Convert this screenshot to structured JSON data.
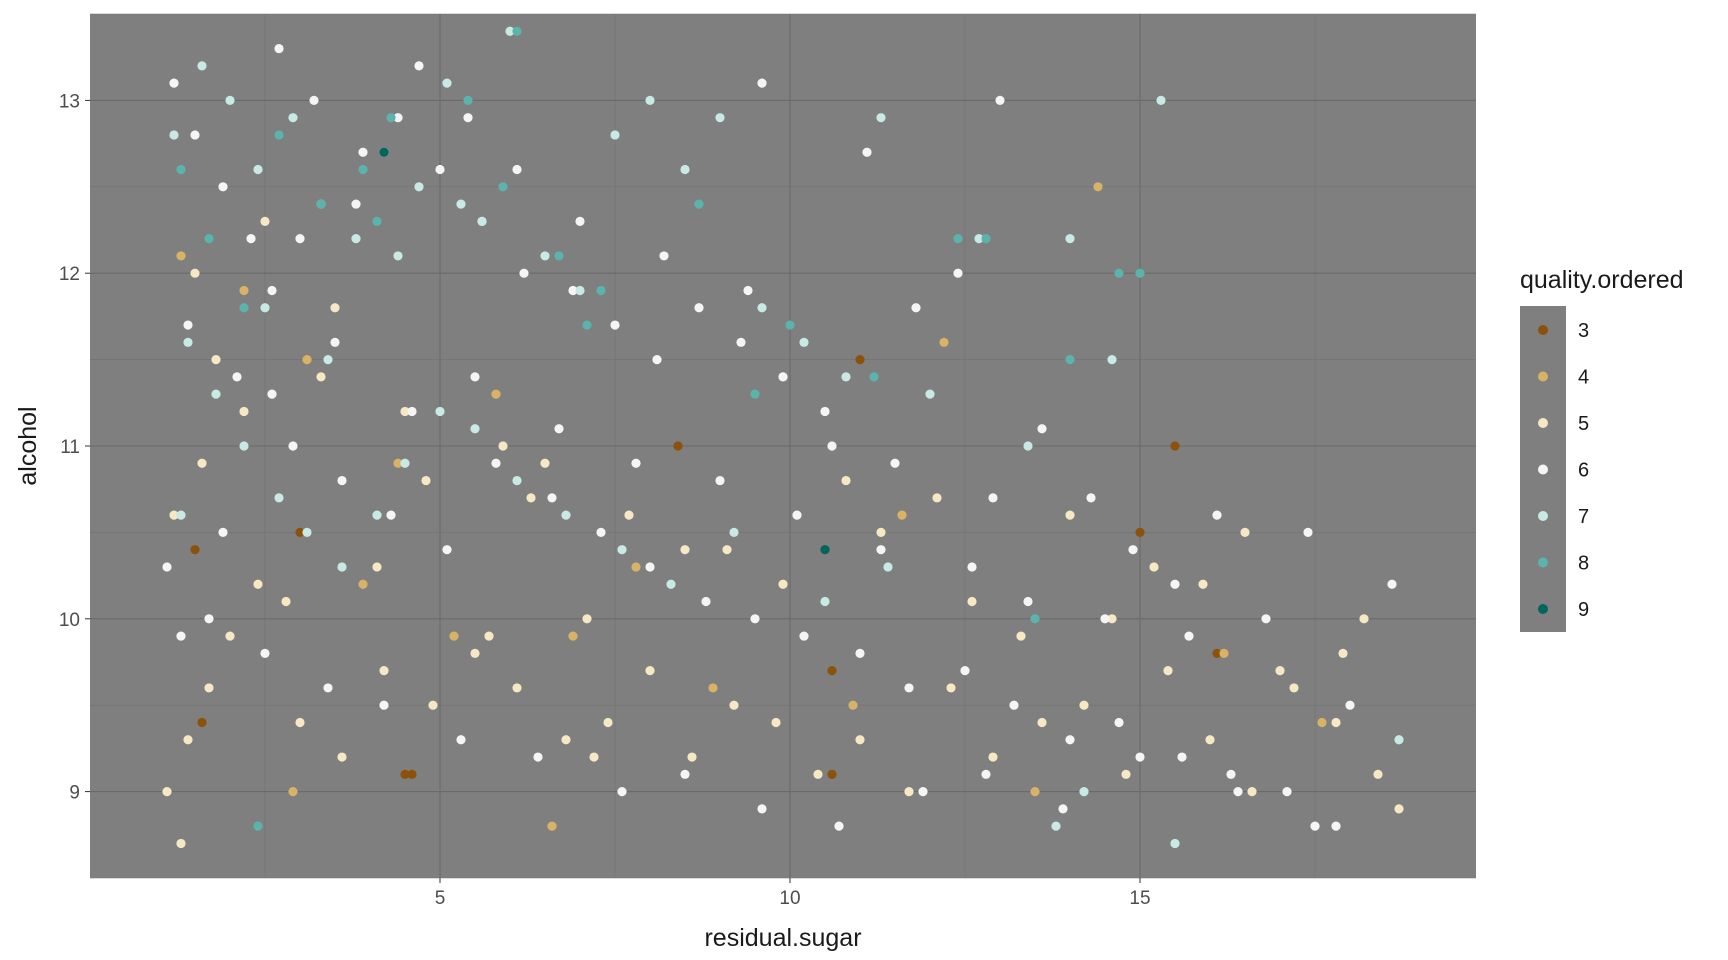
{
  "chart_data": {
    "type": "scatter",
    "xlabel": "residual.sugar",
    "ylabel": "alcohol",
    "xlim": [
      0.0,
      19.8
    ],
    "ylim": [
      8.5,
      13.5
    ],
    "xticks": [
      5,
      10,
      15
    ],
    "yticks": [
      9,
      10,
      11,
      12,
      13
    ],
    "xtick_labels": [
      "5",
      "10",
      "15"
    ],
    "ytick_labels": [
      "9",
      "10",
      "11",
      "12",
      "13"
    ],
    "grid": true,
    "panel_background": "#7f7f7f",
    "legend": {
      "title": "quality.ordered",
      "position": "right",
      "entries": [
        "3",
        "4",
        "5",
        "6",
        "7",
        "8",
        "9"
      ],
      "colors": [
        "#8c510a",
        "#d8b365",
        "#f6e8c3",
        "#f5f5f5",
        "#c7eae5",
        "#5ab4ac",
        "#01665e"
      ]
    },
    "series": [
      {
        "name": "3",
        "color": "#8c510a",
        "x": [
          1.5,
          3.0,
          4.5,
          8.4,
          10.5,
          10.6,
          10.6,
          11.0,
          15.0,
          15.5,
          16.1,
          1.6,
          4.6
        ],
        "y": [
          10.4,
          10.5,
          9.1,
          11.0,
          10.4,
          9.7,
          9.1,
          11.5,
          10.5,
          11.0,
          9.8,
          9.4,
          9.1
        ]
      },
      {
        "name": "4",
        "color": "#d8b365",
        "x": [
          1.3,
          2.2,
          3.1,
          3.9,
          5.2,
          6.6,
          7.8,
          8.9,
          9.9,
          10.9,
          12.2,
          13.5,
          14.4,
          16.2,
          17.6,
          5.8,
          6.9,
          11.6,
          2.9,
          4.4
        ],
        "y": [
          12.1,
          11.9,
          11.5,
          10.2,
          9.9,
          8.8,
          10.3,
          9.6,
          11.4,
          9.5,
          11.6,
          9.0,
          12.5,
          9.8,
          9.4,
          11.3,
          9.9,
          10.6,
          9.0,
          10.9
        ]
      },
      {
        "name": "5",
        "color": "#f6e8c3",
        "x": [
          1.1,
          1.4,
          1.7,
          2.0,
          2.4,
          1.2,
          1.6,
          2.2,
          3.0,
          3.6,
          4.2,
          4.9,
          5.5,
          6.1,
          6.8,
          7.4,
          8.0,
          8.6,
          9.2,
          9.8,
          10.4,
          11.0,
          11.7,
          12.3,
          12.9,
          13.6,
          14.2,
          14.8,
          15.4,
          16.0,
          16.6,
          17.2,
          17.8,
          18.4,
          18.7,
          1.3,
          2.8,
          4.1,
          5.7,
          7.1,
          8.5,
          9.9,
          11.3,
          12.6,
          14.0,
          15.2,
          16.5,
          17.9,
          1.8,
          3.3,
          4.8,
          6.3,
          7.7,
          9.1,
          10.8,
          12.1,
          13.3,
          14.6,
          15.9,
          17.0,
          18.2,
          1.5,
          2.5,
          3.5,
          4.5,
          5.9,
          6.5,
          7.2
        ],
        "y": [
          9.0,
          9.3,
          9.6,
          9.9,
          10.2,
          10.6,
          10.9,
          11.2,
          9.4,
          9.2,
          9.7,
          9.5,
          9.8,
          9.6,
          9.3,
          9.4,
          9.7,
          9.2,
          9.5,
          9.4,
          9.1,
          9.3,
          9.0,
          9.6,
          9.2,
          9.4,
          9.5,
          9.1,
          9.7,
          9.3,
          9.0,
          9.6,
          9.4,
          9.1,
          8.9,
          8.7,
          10.1,
          10.3,
          9.9,
          10.0,
          10.4,
          10.2,
          10.5,
          10.1,
          10.6,
          10.3,
          10.5,
          9.8,
          11.5,
          11.4,
          10.8,
          10.7,
          10.6,
          10.4,
          10.8,
          10.7,
          9.9,
          10.0,
          10.2,
          9.7,
          10.0,
          12.0,
          12.3,
          11.8,
          11.2,
          11.0,
          10.9,
          9.2
        ]
      },
      {
        "name": "6",
        "color": "#f5f5f5",
        "x": [
          1.2,
          1.5,
          1.9,
          2.3,
          2.7,
          3.2,
          3.8,
          4.4,
          5.0,
          5.6,
          6.2,
          6.9,
          7.5,
          8.1,
          8.7,
          9.3,
          9.9,
          10.5,
          11.1,
          11.8,
          12.4,
          13.0,
          13.6,
          14.3,
          14.9,
          15.5,
          16.1,
          16.8,
          17.4,
          18.0,
          18.6,
          1.4,
          2.1,
          2.9,
          3.6,
          4.3,
          5.1,
          5.8,
          6.6,
          7.3,
          8.0,
          8.8,
          9.5,
          10.2,
          11.0,
          11.7,
          12.5,
          13.2,
          14.0,
          14.7,
          15.6,
          16.3,
          17.1,
          17.8,
          1.1,
          1.7,
          2.5,
          3.4,
          4.2,
          5.3,
          6.4,
          7.6,
          8.5,
          9.6,
          10.7,
          11.9,
          12.8,
          13.9,
          15.0,
          16.4,
          17.5,
          2.6,
          3.5,
          4.6,
          5.5,
          6.7,
          7.8,
          9.0,
          10.1,
          11.3,
          12.6,
          13.4,
          14.5,
          15.7,
          1.3,
          1.9,
          2.6,
          3.0,
          3.9,
          4.7,
          5.4,
          6.1,
          7.0,
          8.2,
          9.4,
          10.6,
          11.5,
          12.9,
          9.6
        ],
        "y": [
          13.1,
          12.8,
          12.5,
          12.2,
          13.3,
          13.0,
          12.4,
          12.9,
          12.6,
          12.3,
          12.0,
          11.9,
          11.7,
          11.5,
          11.8,
          11.6,
          11.4,
          11.2,
          12.7,
          11.8,
          12.0,
          13.0,
          11.1,
          10.7,
          10.4,
          10.2,
          10.6,
          10.0,
          10.5,
          9.5,
          10.2,
          11.7,
          11.4,
          11.0,
          10.8,
          10.6,
          10.4,
          10.9,
          10.7,
          10.5,
          10.3,
          10.1,
          10.0,
          9.9,
          9.8,
          9.6,
          9.7,
          9.5,
          9.3,
          9.4,
          9.2,
          9.1,
          9.0,
          8.8,
          10.3,
          10.0,
          9.8,
          9.6,
          9.5,
          9.3,
          9.2,
          9.0,
          9.1,
          8.9,
          8.8,
          9.0,
          9.1,
          8.9,
          9.2,
          9.0,
          8.8,
          11.9,
          11.6,
          11.2,
          11.4,
          11.1,
          10.9,
          10.8,
          10.6,
          10.4,
          10.3,
          10.1,
          10.0,
          9.9,
          9.9,
          10.5,
          11.3,
          12.2,
          12.7,
          13.2,
          12.9,
          12.6,
          12.3,
          12.1,
          11.9,
          11.0,
          10.9,
          10.7,
          13.1
        ]
      },
      {
        "name": "7",
        "color": "#c7eae5",
        "x": [
          1.2,
          1.6,
          2.0,
          2.4,
          2.9,
          3.3,
          3.8,
          4.2,
          4.7,
          5.1,
          5.6,
          6.0,
          6.5,
          7.0,
          7.5,
          8.0,
          8.5,
          9.0,
          9.6,
          10.2,
          10.8,
          11.3,
          12.0,
          12.7,
          13.4,
          14.0,
          14.6,
          15.3,
          1.4,
          1.8,
          2.2,
          2.7,
          3.1,
          3.6,
          4.1,
          4.5,
          5.0,
          5.5,
          6.1,
          6.8,
          7.6,
          8.3,
          9.2,
          10.5,
          11.4,
          13.8,
          14.2,
          18.7,
          15.5,
          1.3,
          2.5,
          3.4,
          4.4,
          5.3
        ],
        "y": [
          12.8,
          13.2,
          13.0,
          12.6,
          12.9,
          12.4,
          12.2,
          12.7,
          12.5,
          13.1,
          12.3,
          13.4,
          12.1,
          11.9,
          12.8,
          13.0,
          12.6,
          12.9,
          11.8,
          11.6,
          11.4,
          12.9,
          11.3,
          12.2,
          11.0,
          12.2,
          11.5,
          13.0,
          11.6,
          11.3,
          11.0,
          10.7,
          10.5,
          10.3,
          10.6,
          10.9,
          11.2,
          11.1,
          10.8,
          10.6,
          10.4,
          10.2,
          10.5,
          10.1,
          10.3,
          8.8,
          9.0,
          9.3,
          8.7,
          10.6,
          11.8,
          11.5,
          12.1,
          12.4
        ]
      },
      {
        "name": "8",
        "color": "#5ab4ac",
        "x": [
          1.3,
          1.7,
          2.2,
          2.7,
          3.3,
          3.9,
          4.3,
          5.4,
          6.1,
          6.7,
          7.3,
          8.7,
          9.5,
          10.0,
          11.2,
          12.4,
          12.8,
          13.5,
          14.0,
          14.7,
          15.0,
          2.4,
          4.1,
          5.9,
          7.1
        ],
        "y": [
          12.6,
          12.2,
          11.8,
          12.8,
          12.4,
          12.6,
          12.9,
          13.0,
          13.4,
          12.1,
          11.9,
          12.4,
          11.3,
          11.7,
          11.4,
          12.2,
          12.2,
          10.0,
          11.5,
          12.0,
          12.0,
          8.8,
          12.3,
          12.5,
          11.7
        ]
      },
      {
        "name": "9",
        "color": "#01665e",
        "x": [
          4.2,
          10.5
        ],
        "y": [
          12.7,
          10.4
        ]
      }
    ]
  }
}
